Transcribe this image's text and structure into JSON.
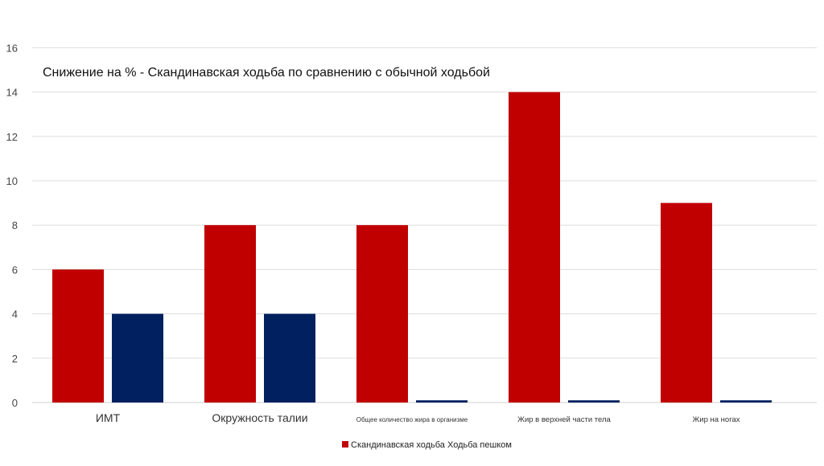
{
  "chart_data": {
    "type": "bar",
    "title": "Снижение на % - Скандинавская ходьба по сравнению с обычной ходьбой",
    "xlabel": "",
    "ylabel": "",
    "ylim": [
      0,
      16
    ],
    "yticks": [
      0,
      2,
      4,
      6,
      8,
      10,
      12,
      14,
      16
    ],
    "grid": true,
    "legend_position": "bottom",
    "legend_text": "Скандинавская ходьба Ходьба пешком",
    "categories": [
      "ИМТ",
      "Окружность талии",
      "Общее количество жира в организме",
      "Жир в верхней части тела",
      "Жир на ногах"
    ],
    "series": [
      {
        "name": "Скандинавская ходьба",
        "color": "#c00000",
        "values": [
          6,
          8,
          8,
          14,
          9
        ]
      },
      {
        "name": "Ходьба пешком",
        "color": "#002060",
        "values": [
          4,
          4,
          0.1,
          0.1,
          0.1
        ]
      }
    ]
  }
}
